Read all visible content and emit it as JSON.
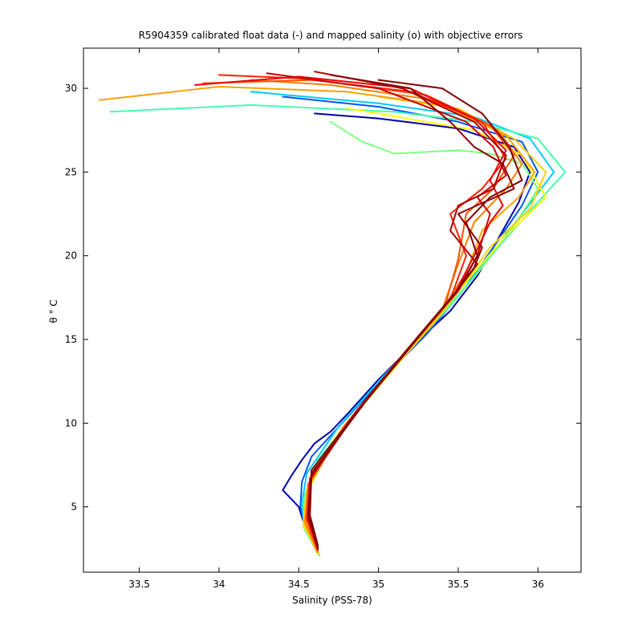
{
  "chart_data": {
    "type": "line",
    "title": "R5904359 calibrated float data (-) and mapped salinity (o) with objective errors",
    "xlabel": "Salinity (PSS-78)",
    "ylabel": "θ ° C",
    "xlim": [
      33.15,
      36.27
    ],
    "ylim": [
      1.1,
      32.4
    ],
    "x_ticks": [
      33.5,
      34,
      34.5,
      35,
      35.5,
      36
    ],
    "x_tick_labels": [
      "33.5",
      "34",
      "34.5",
      "35",
      "35.5",
      "36"
    ],
    "y_ticks": [
      5,
      10,
      15,
      20,
      25,
      30
    ],
    "y_tick_labels": [
      "5",
      "10",
      "15",
      "20",
      "25",
      "30"
    ],
    "grid": false,
    "legend": "none",
    "colormap": "jet",
    "colormap_stops": [
      "#00008f",
      "#0000ff",
      "#0080ff",
      "#00ffff",
      "#80ff80",
      "#ffff00",
      "#ff8000",
      "#ff0000",
      "#800000"
    ],
    "series": [
      {
        "color": "#0000aa",
        "points": [
          [
            34.62,
            2.2
          ],
          [
            34.55,
            3.5
          ],
          [
            34.5,
            5.0
          ],
          [
            34.4,
            6.0
          ],
          [
            34.45,
            6.8
          ],
          [
            34.52,
            7.8
          ],
          [
            34.6,
            8.8
          ],
          [
            34.7,
            9.5
          ],
          [
            34.8,
            10.5
          ],
          [
            35.0,
            12.6
          ],
          [
            35.2,
            14.5
          ],
          [
            35.45,
            16.7
          ],
          [
            35.62,
            18.8
          ],
          [
            35.75,
            21.0
          ],
          [
            35.88,
            23.2
          ],
          [
            35.95,
            25.0
          ],
          [
            35.85,
            26.5
          ],
          [
            35.5,
            27.6
          ],
          [
            35.0,
            28.2
          ],
          [
            34.6,
            28.5
          ]
        ]
      },
      {
        "color": "#0055ff",
        "points": [
          [
            34.63,
            2.1
          ],
          [
            34.55,
            3.5
          ],
          [
            34.51,
            5.0
          ],
          [
            34.52,
            6.5
          ],
          [
            34.58,
            8.0
          ],
          [
            34.8,
            10.3
          ],
          [
            35.05,
            12.9
          ],
          [
            35.3,
            15.3
          ],
          [
            35.52,
            17.8
          ],
          [
            35.72,
            20.5
          ],
          [
            35.9,
            23.0
          ],
          [
            36.0,
            25.0
          ],
          [
            35.9,
            26.8
          ],
          [
            35.5,
            28.0
          ],
          [
            35.0,
            28.9
          ],
          [
            34.4,
            29.5
          ]
        ]
      },
      {
        "color": "#00ccff",
        "points": [
          [
            34.63,
            2.1
          ],
          [
            34.54,
            3.6
          ],
          [
            34.52,
            5.2
          ],
          [
            34.55,
            7.0
          ],
          [
            34.75,
            9.8
          ],
          [
            35.02,
            12.7
          ],
          [
            35.3,
            15.5
          ],
          [
            35.55,
            18.2
          ],
          [
            35.78,
            21.0
          ],
          [
            35.98,
            23.5
          ],
          [
            36.1,
            25.0
          ],
          [
            35.95,
            27.0
          ],
          [
            35.6,
            28.3
          ],
          [
            35.0,
            29.1
          ],
          [
            34.2,
            29.8
          ]
        ]
      },
      {
        "color": "#40ffb0",
        "points": [
          [
            34.63,
            2.1
          ],
          [
            34.53,
            3.8
          ],
          [
            34.53,
            5.5
          ],
          [
            34.62,
            7.8
          ],
          [
            34.88,
            10.8
          ],
          [
            35.15,
            14.0
          ],
          [
            35.45,
            17.0
          ],
          [
            35.75,
            20.5
          ],
          [
            36.0,
            23.2
          ],
          [
            36.17,
            25.0
          ],
          [
            36.0,
            27.0
          ],
          [
            35.6,
            28.0
          ],
          [
            35.1,
            28.6
          ],
          [
            34.2,
            29.0
          ],
          [
            33.32,
            28.6
          ]
        ]
      },
      {
        "color": "#80ff80",
        "points": [
          [
            34.63,
            2.2
          ],
          [
            34.53,
            3.8
          ],
          [
            34.54,
            5.6
          ],
          [
            34.7,
            8.8
          ],
          [
            35.0,
            12.2
          ],
          [
            35.3,
            15.5
          ],
          [
            35.6,
            18.7
          ],
          [
            35.85,
            21.8
          ],
          [
            36.0,
            24.0
          ],
          [
            35.9,
            25.5
          ],
          [
            35.7,
            26.1
          ],
          [
            35.5,
            26.3
          ],
          [
            35.1,
            26.1
          ],
          [
            34.9,
            26.8
          ],
          [
            34.7,
            28.0
          ]
        ]
      },
      {
        "color": "#ffff00",
        "points": [
          [
            34.63,
            2.2
          ],
          [
            34.53,
            3.9
          ],
          [
            34.55,
            5.8
          ],
          [
            34.72,
            9.0
          ],
          [
            35.02,
            12.4
          ],
          [
            35.32,
            15.8
          ],
          [
            35.6,
            19.0
          ],
          [
            35.8,
            21.2
          ],
          [
            36.05,
            23.5
          ],
          [
            35.9,
            26.0
          ],
          [
            35.6,
            27.5
          ],
          [
            35.0,
            28.5
          ],
          [
            34.8,
            28.8
          ]
        ]
      },
      {
        "color": "#ffd000",
        "points": [
          [
            34.62,
            2.2
          ],
          [
            34.53,
            4.0
          ],
          [
            34.55,
            6.0
          ],
          [
            34.75,
            9.4
          ],
          [
            35.05,
            12.8
          ],
          [
            35.35,
            16.0
          ],
          [
            35.55,
            18.5
          ],
          [
            35.7,
            20.5
          ],
          [
            35.95,
            22.8
          ],
          [
            36.05,
            25.0
          ],
          [
            35.85,
            27.0
          ],
          [
            35.5,
            28.8
          ],
          [
            35.0,
            29.5
          ]
        ]
      },
      {
        "color": "#ffa000",
        "points": [
          [
            34.62,
            2.3
          ],
          [
            34.54,
            4.0
          ],
          [
            34.56,
            6.2
          ],
          [
            34.78,
            9.8
          ],
          [
            35.08,
            13.2
          ],
          [
            35.38,
            16.5
          ],
          [
            35.55,
            19.0
          ],
          [
            35.65,
            21.5
          ],
          [
            35.88,
            23.5
          ],
          [
            35.98,
            25.0
          ],
          [
            35.8,
            27.2
          ],
          [
            35.4,
            29.0
          ],
          [
            34.8,
            29.8
          ],
          [
            34.0,
            30.1
          ],
          [
            33.25,
            29.3
          ]
        ]
      },
      {
        "color": "#ff8000",
        "points": [
          [
            34.62,
            2.3
          ],
          [
            34.54,
            4.1
          ],
          [
            34.56,
            6.3
          ],
          [
            34.8,
            10.0
          ],
          [
            35.1,
            13.5
          ],
          [
            35.4,
            16.8
          ],
          [
            35.5,
            19.5
          ],
          [
            35.6,
            22.0
          ],
          [
            35.8,
            24.0
          ],
          [
            35.9,
            25.5
          ],
          [
            35.75,
            27.5
          ],
          [
            35.35,
            29.3
          ],
          [
            34.7,
            30.2
          ],
          [
            34.2,
            30.5
          ]
        ]
      },
      {
        "color": "#ff5000",
        "points": [
          [
            34.62,
            2.4
          ],
          [
            34.55,
            4.2
          ],
          [
            34.56,
            6.4
          ],
          [
            34.82,
            10.2
          ],
          [
            35.12,
            13.7
          ],
          [
            35.42,
            17.1
          ],
          [
            35.5,
            19.8
          ],
          [
            35.55,
            22.5
          ],
          [
            35.72,
            24.0
          ],
          [
            35.85,
            26.0
          ],
          [
            35.7,
            27.8
          ],
          [
            35.3,
            29.6
          ],
          [
            34.6,
            30.5
          ],
          [
            33.9,
            30.3
          ]
        ]
      },
      {
        "color": "#ff2000",
        "points": [
          [
            34.62,
            2.4
          ],
          [
            34.55,
            4.3
          ],
          [
            34.57,
            6.6
          ],
          [
            34.85,
            10.5
          ],
          [
            35.15,
            14.0
          ],
          [
            35.45,
            17.4
          ],
          [
            35.55,
            20.0
          ],
          [
            35.45,
            22.5
          ],
          [
            35.65,
            24.0
          ],
          [
            35.8,
            25.8
          ],
          [
            35.65,
            28.0
          ],
          [
            35.2,
            29.8
          ],
          [
            34.5,
            30.6
          ],
          [
            34.0,
            30.8
          ]
        ]
      },
      {
        "color": "#ee0000",
        "points": [
          [
            34.62,
            2.5
          ],
          [
            34.56,
            4.3
          ],
          [
            34.57,
            6.7
          ],
          [
            34.86,
            10.7
          ],
          [
            35.17,
            14.3
          ],
          [
            35.47,
            17.6
          ],
          [
            35.6,
            20.0
          ],
          [
            35.7,
            22.0
          ],
          [
            35.78,
            23.0
          ],
          [
            35.7,
            24.5
          ],
          [
            35.8,
            26.3
          ],
          [
            35.6,
            28.2
          ],
          [
            35.2,
            30.0
          ],
          [
            34.5,
            30.7
          ],
          [
            33.85,
            30.2
          ]
        ]
      },
      {
        "color": "#cc0000",
        "points": [
          [
            34.62,
            2.5
          ],
          [
            34.56,
            4.4
          ],
          [
            34.58,
            6.8
          ],
          [
            34.88,
            10.9
          ],
          [
            35.2,
            14.6
          ],
          [
            35.5,
            17.9
          ],
          [
            35.62,
            20.0
          ],
          [
            35.7,
            22.5
          ],
          [
            35.62,
            23.5
          ],
          [
            35.8,
            24.8
          ],
          [
            35.72,
            26.5
          ],
          [
            35.55,
            28.0
          ],
          [
            35.0,
            30.0
          ],
          [
            34.3,
            30.9
          ]
        ]
      },
      {
        "color": "#aa0000",
        "points": [
          [
            34.62,
            2.6
          ],
          [
            34.56,
            4.4
          ],
          [
            34.58,
            6.9
          ],
          [
            34.9,
            11.1
          ],
          [
            35.22,
            14.8
          ],
          [
            35.5,
            18.0
          ],
          [
            35.62,
            19.5
          ],
          [
            35.45,
            21.5
          ],
          [
            35.5,
            23.0
          ],
          [
            35.72,
            24.0
          ],
          [
            35.8,
            26.0
          ],
          [
            35.6,
            28.0
          ],
          [
            35.15,
            30.0
          ],
          [
            34.6,
            31.0
          ]
        ]
      },
      {
        "color": "#8b0000",
        "points": [
          [
            34.62,
            2.7
          ],
          [
            34.57,
            4.5
          ],
          [
            34.58,
            7.0
          ],
          [
            34.92,
            11.3
          ],
          [
            35.24,
            15.0
          ],
          [
            35.5,
            18.0
          ],
          [
            35.6,
            19.3
          ],
          [
            35.65,
            20.5
          ],
          [
            35.5,
            22.5
          ],
          [
            35.85,
            24.0
          ],
          [
            35.78,
            25.5
          ],
          [
            35.6,
            26.5
          ],
          [
            35.45,
            28.0
          ],
          [
            35.2,
            30.0
          ],
          [
            34.7,
            30.8
          ]
        ]
      },
      {
        "color": "#800000",
        "points": [
          [
            34.62,
            2.5
          ],
          [
            34.56,
            4.6
          ],
          [
            34.58,
            7.2
          ],
          [
            34.93,
            11.5
          ],
          [
            35.25,
            15.2
          ],
          [
            35.5,
            18.0
          ],
          [
            35.62,
            20.0
          ],
          [
            35.55,
            22.0
          ],
          [
            35.7,
            23.5
          ],
          [
            35.9,
            24.5
          ],
          [
            35.82,
            26.5
          ],
          [
            35.65,
            28.5
          ],
          [
            35.4,
            30.0
          ],
          [
            35.0,
            30.5
          ]
        ]
      }
    ]
  }
}
